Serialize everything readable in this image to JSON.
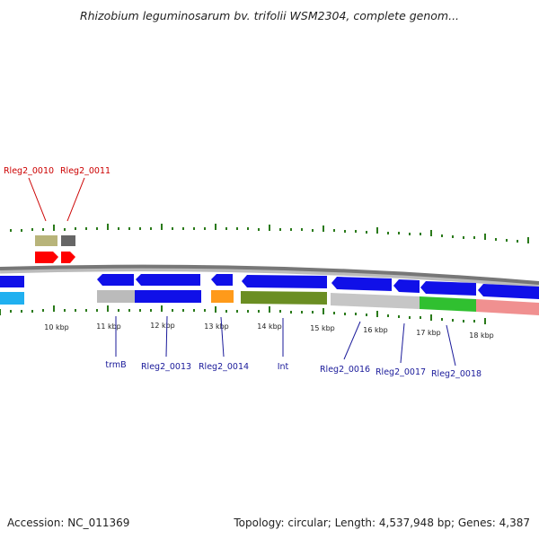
{
  "title": "Rhizobium leguminosarum bv. trifolii WSM2304, complete genom...",
  "footer": {
    "accession": "Accession: NC_011369",
    "topology": "Topology: circular; Length: 4,537,948 bp; Genes: 4,387"
  },
  "colors": {
    "backbone": "#777777",
    "forward_gene": "#ff0000",
    "reverse_gene": "#0000ee",
    "tick": "#2a7a1a",
    "reverse_label": "#1a1a9a",
    "forward_label": "#cc0000"
  },
  "kbp_ticks": [
    "10 kbp",
    "11 kbp",
    "12 kbp",
    "13 kbp",
    "14 kbp",
    "15 kbp",
    "16 kbp",
    "17 kbp",
    "18 kbp"
  ],
  "forward_labels": [
    "Rleg2_0010",
    "Rleg2_0011"
  ],
  "reverse_labels": [
    "trmB",
    "Rleg2_0013",
    "Rleg2_0014",
    "Int",
    "Rleg2_0016",
    "Rleg2_0017",
    "Rleg2_0018"
  ]
}
